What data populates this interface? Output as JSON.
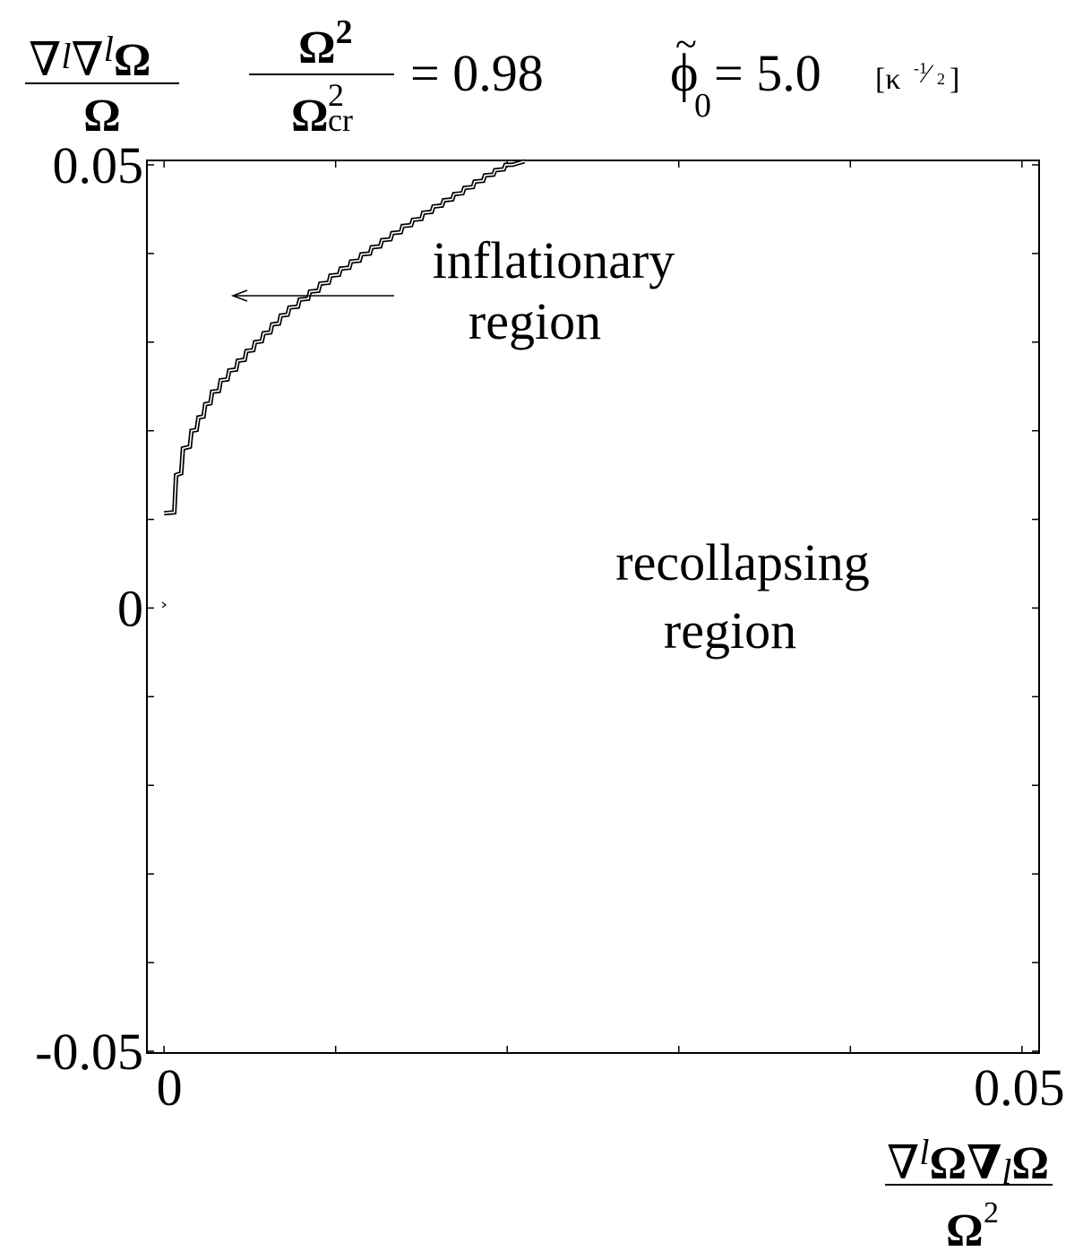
{
  "chart_data": {
    "type": "line",
    "x_range": [
      -0.001,
      0.051
    ],
    "y_range": [
      -0.0502,
      0.0505
    ],
    "x_ticks": [
      {
        "value": 0,
        "label": "0"
      },
      {
        "value": 0.05,
        "label": "0.05"
      }
    ],
    "x_minor_ticks": [
      0.01,
      0.02,
      0.03,
      0.04
    ],
    "y_ticks": [
      {
        "value": 0.05,
        "label": "0.05"
      },
      {
        "value": 0,
        "label": "0"
      },
      {
        "value": -0.05,
        "label": "-0.05"
      }
    ],
    "y_minor_ticks": [
      0.04,
      0.03,
      0.02,
      0.01,
      -0.01,
      -0.02,
      -0.03,
      -0.04
    ],
    "grid": false,
    "ylabel": {
      "numerator": {
        "n1": "∇",
        "s1": "l",
        "n2": "∇",
        "s2": "l",
        "n3": "Ω"
      },
      "denominator": "Ω"
    },
    "xlabel": {
      "numerator": {
        "n1": "∇",
        "s1": "l",
        "n2": "Ω∇",
        "s2": "l",
        "n3": "Ω"
      },
      "denominator": {
        "base": "Ω",
        "sup": "2"
      }
    },
    "header": {
      "ratio": {
        "num_base": "Ω",
        "num_sup": "2",
        "den_base": "Ω",
        "den_sup": "2",
        "den_sub": "cr"
      },
      "ratio_value": "= 0.98",
      "phi_symbol": "ϕ",
      "phi_tilde": "~",
      "phi_sub": "0",
      "phi_value": "= 5.0",
      "unit_open": "[κ",
      "unit_num": "-1",
      "unit_slash": "⁄",
      "unit_den": "2",
      "unit_close": "]"
    },
    "annotations": [
      {
        "id": "inflationary",
        "lines": [
          "inflationary",
          "region"
        ]
      },
      {
        "id": "recollapsing",
        "lines": [
          "recollapsing",
          "region"
        ]
      }
    ],
    "series": [
      {
        "points": [
          [
            0,
            0.0107
          ],
          [
            0.0006,
            0.0108
          ],
          [
            0.0007,
            0.015
          ],
          [
            0.001,
            0.0152
          ],
          [
            0.0011,
            0.018
          ],
          [
            0.0015,
            0.0182
          ],
          [
            0.0016,
            0.02
          ],
          [
            0.0019,
            0.0201
          ],
          [
            0.002,
            0.0215
          ],
          [
            0.0023,
            0.0216
          ],
          [
            0.0024,
            0.023
          ],
          [
            0.0027,
            0.0231
          ],
          [
            0.0028,
            0.0244
          ],
          [
            0.0032,
            0.0245
          ],
          [
            0.0033,
            0.0257
          ],
          [
            0.0037,
            0.0258
          ],
          [
            0.0038,
            0.0268
          ],
          [
            0.0042,
            0.0269
          ],
          [
            0.0043,
            0.0279
          ],
          [
            0.0047,
            0.028
          ],
          [
            0.0048,
            0.029
          ],
          [
            0.0052,
            0.0291
          ],
          [
            0.0053,
            0.03
          ],
          [
            0.0057,
            0.0301
          ],
          [
            0.0058,
            0.031
          ],
          [
            0.0062,
            0.0311
          ],
          [
            0.0063,
            0.032
          ],
          [
            0.0067,
            0.0321
          ],
          [
            0.0068,
            0.033
          ],
          [
            0.0072,
            0.0331
          ],
          [
            0.0073,
            0.0339
          ],
          [
            0.0078,
            0.034
          ],
          [
            0.0079,
            0.0348
          ],
          [
            0.0084,
            0.0349
          ],
          [
            0.0085,
            0.0357
          ],
          [
            0.009,
            0.0358
          ],
          [
            0.0091,
            0.0366
          ],
          [
            0.0096,
            0.0367
          ],
          [
            0.0097,
            0.0375
          ],
          [
            0.0102,
            0.0376
          ],
          [
            0.0103,
            0.0383
          ],
          [
            0.0108,
            0.0384
          ],
          [
            0.0109,
            0.0391
          ],
          [
            0.0114,
            0.0392
          ],
          [
            0.0115,
            0.0399
          ],
          [
            0.012,
            0.04
          ],
          [
            0.0121,
            0.0407
          ],
          [
            0.0126,
            0.0408
          ],
          [
            0.0127,
            0.0415
          ],
          [
            0.0132,
            0.0416
          ],
          [
            0.0133,
            0.0423
          ],
          [
            0.0138,
            0.0424
          ],
          [
            0.0139,
            0.0431
          ],
          [
            0.0144,
            0.0432
          ],
          [
            0.0145,
            0.0438
          ],
          [
            0.015,
            0.0439
          ],
          [
            0.0151,
            0.0446
          ],
          [
            0.0156,
            0.0447
          ],
          [
            0.0157,
            0.0453
          ],
          [
            0.0162,
            0.0454
          ],
          [
            0.0163,
            0.046
          ],
          [
            0.0168,
            0.0461
          ],
          [
            0.0169,
            0.0467
          ],
          [
            0.0174,
            0.0468
          ],
          [
            0.0175,
            0.0474
          ],
          [
            0.018,
            0.0475
          ],
          [
            0.0181,
            0.0481
          ],
          [
            0.0186,
            0.0482
          ],
          [
            0.0187,
            0.0488
          ],
          [
            0.0192,
            0.0489
          ],
          [
            0.0193,
            0.0494
          ],
          [
            0.0198,
            0.0495
          ],
          [
            0.0199,
            0.05
          ],
          [
            0.0203,
            0.05
          ],
          [
            0.021,
            0.0504
          ]
        ]
      }
    ]
  }
}
